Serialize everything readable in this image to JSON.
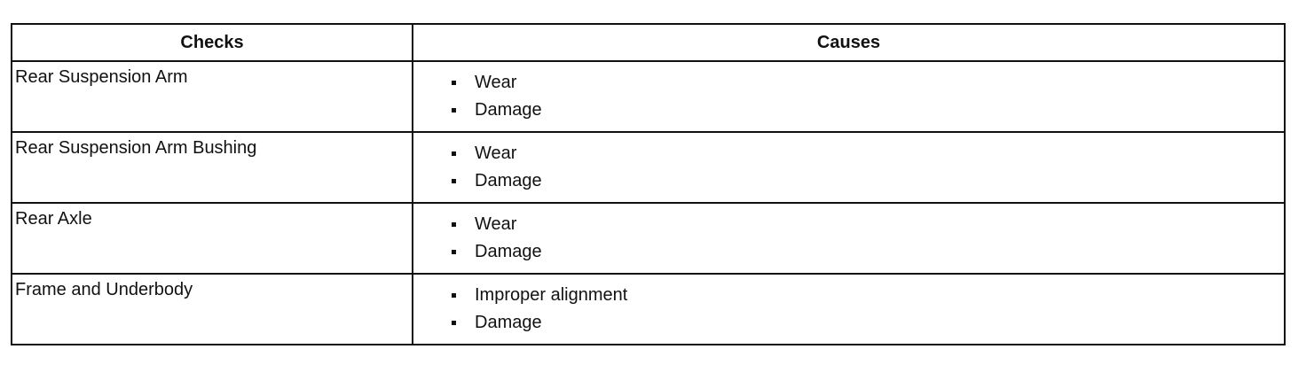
{
  "table": {
    "headers": [
      "Checks",
      "Causes"
    ],
    "rows": [
      {
        "check": "Rear Suspension Arm",
        "causes": [
          "Wear",
          "Damage"
        ]
      },
      {
        "check": "Rear Suspension Arm Bushing",
        "causes": [
          "Wear",
          "Damage"
        ]
      },
      {
        "check": "Rear Axle",
        "causes": [
          "Wear",
          "Damage"
        ]
      },
      {
        "check": "Frame and Underbody",
        "causes": [
          "Improper alignment",
          "Damage"
        ]
      }
    ]
  }
}
